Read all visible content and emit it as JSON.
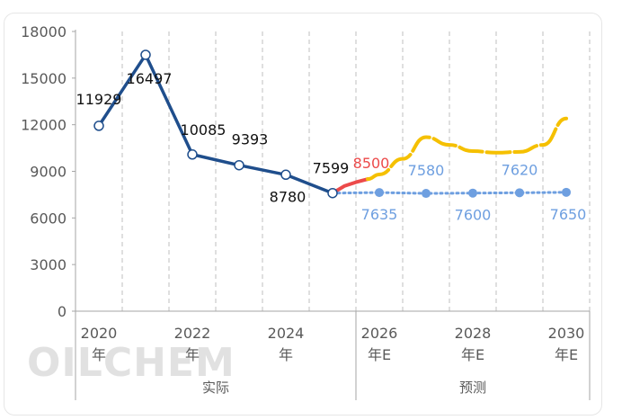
{
  "watermark": "OILCHEM",
  "chart_data": {
    "type": "line",
    "x": [
      2020,
      2021,
      2022,
      2023,
      2024,
      2025,
      2026,
      2027,
      2028,
      2029,
      2030
    ],
    "ylim": [
      0,
      18000
    ],
    "yticks": [
      0,
      3000,
      6000,
      9000,
      12000,
      15000,
      18000
    ],
    "ytick_labels": [
      "0",
      "3000",
      "6000",
      "9000",
      "12000",
      "15000",
      "18000"
    ],
    "grid": "vertical dashed",
    "xtick_labels": [
      {
        "x": 2020,
        "line1": "2020",
        "line2": "年"
      },
      {
        "x": 2022,
        "line1": "2022",
        "line2": "年"
      },
      {
        "x": 2024,
        "line1": "2024",
        "line2": "年"
      },
      {
        "x": 2026,
        "line1": "2026",
        "line2": "年E"
      },
      {
        "x": 2028,
        "line1": "2028",
        "line2": "年E"
      },
      {
        "x": 2030,
        "line1": "2030",
        "line2": "年E"
      }
    ],
    "groups": [
      {
        "label": "实际",
        "from": 2020,
        "to": 2025
      },
      {
        "label": "预测",
        "from": 2025,
        "to": 2030
      }
    ],
    "colors": {
      "actual": "#1f4e8c",
      "red": "#ec4a4a",
      "yellow": "#f5c000",
      "blue": "#6e9fe0",
      "grid": "#bfbfbf"
    },
    "series": [
      {
        "values": [
          11929,
          16497,
          10085,
          9393,
          8780,
          7599
        ],
        "x": [
          2020,
          2021,
          2022,
          2023,
          2024,
          2025
        ],
        "labels": [
          "11929",
          "16497",
          "10085",
          "9393",
          "8780",
          "7599"
        ]
      },
      {
        "x": [
          2025,
          2026,
          2027,
          2028,
          2029,
          2030
        ],
        "values": [
          7599,
          7635,
          7580,
          7600,
          7620,
          7650
        ],
        "labels": [
          "",
          "7635",
          "7580",
          "7600",
          "7620",
          "7650"
        ]
      }
    ],
    "high_scenario": {
      "x": [
        2025,
        2025.25,
        2025.5,
        2025.75,
        2026,
        2026.5,
        2027,
        2027.5,
        2028,
        2028.5,
        2029,
        2029.5,
        2030
      ],
      "values": [
        7599,
        8050,
        8300,
        8500,
        8800,
        9800,
        11200,
        10700,
        10300,
        10200,
        10250,
        10700,
        12400
      ],
      "label": "8500"
    }
  }
}
